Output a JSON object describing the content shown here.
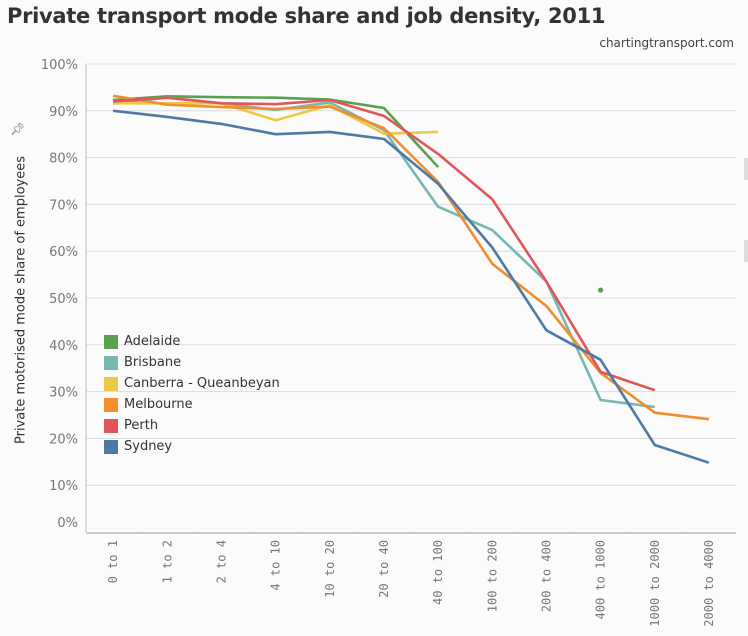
{
  "header": {
    "title": "Private transport mode share and job density, 2011",
    "source": "chartingtransport.com",
    "pin_icon": "pin-icon"
  },
  "chart_data": {
    "type": "line",
    "title": "Private transport mode share and job density, 2011",
    "xlabel": "",
    "ylabel": "Private motorised mode share of employees",
    "ylim": [
      0,
      100
    ],
    "yticks": [
      "0%",
      "10%",
      "20%",
      "30%",
      "40%",
      "50%",
      "60%",
      "70%",
      "80%",
      "90%",
      "100%"
    ],
    "grid": true,
    "legend_position": "left-middle",
    "categories": [
      "0 to 1",
      "1 to 2",
      "2 to 4",
      "4 to 10",
      "10 to 20",
      "20 to 40",
      "40 to 100",
      "100 to 200",
      "200 to 400",
      "400 to 1000",
      "1000 to 2000",
      "2000 to 4000"
    ],
    "series": [
      {
        "name": "Adelaide",
        "color": "#59a14f",
        "values": [
          92.3,
          93.1,
          92.9,
          92.8,
          92.4,
          90.6,
          78.0,
          null,
          null,
          null,
          null,
          null
        ],
        "extra_points": [
          {
            "category": "400 to 1000",
            "value": 51.7
          }
        ]
      },
      {
        "name": "Brisbane",
        "color": "#76b7b2",
        "values": [
          91.6,
          92.8,
          91.6,
          90.2,
          91.8,
          85.9,
          69.5,
          64.5,
          53.5,
          28.2,
          26.7,
          null
        ]
      },
      {
        "name": "Canberra - Queanbeyan",
        "color": "#edc948",
        "values": [
          91.6,
          91.6,
          91.6,
          88.0,
          91.2,
          85.1,
          85.5,
          null,
          null,
          null,
          null,
          null
        ]
      },
      {
        "name": "Melbourne",
        "color": "#f28e2b",
        "values": [
          93.2,
          91.3,
          90.8,
          90.4,
          90.9,
          86.3,
          74.8,
          57.3,
          48.3,
          34.0,
          25.5,
          24.1
        ]
      },
      {
        "name": "Perth",
        "color": "#e15759",
        "values": [
          92.0,
          92.8,
          91.6,
          91.4,
          92.3,
          88.9,
          80.8,
          71.1,
          53.5,
          34.2,
          30.3,
          null
        ]
      },
      {
        "name": "Sydney",
        "color": "#4e79a7",
        "values": [
          90.0,
          88.7,
          87.2,
          85.0,
          85.5,
          84.0,
          74.4,
          60.8,
          43.1,
          36.8,
          18.6,
          14.8
        ]
      }
    ]
  }
}
